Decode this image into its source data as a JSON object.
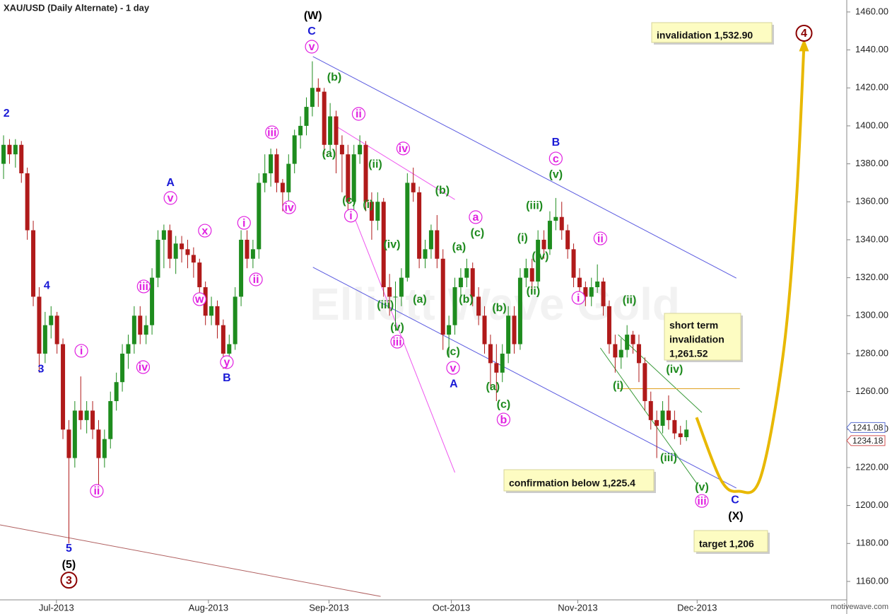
{
  "chart_data": {
    "type": "candlestick",
    "title": "XAU/USD (Daily Alternate) - 1 day",
    "footer": "motivewave.com",
    "watermark": "Elliott Wave Gold",
    "xlim": [
      -0.6,
      142
    ],
    "ylim": [
      1150.3,
      1466.3
    ],
    "xticks": [
      {
        "value": 8.9,
        "label": "Jul-2013"
      },
      {
        "value": 34.5,
        "label": "Aug-2013"
      },
      {
        "value": 54.8,
        "label": "Sep-2013"
      },
      {
        "value": 75.4,
        "label": "Oct-2013"
      },
      {
        "value": 96.7,
        "label": "Nov-2013"
      },
      {
        "value": 116.8,
        "label": "Dec-2013"
      }
    ],
    "yticks": [
      {
        "value": 1160,
        "label": "1160.00"
      },
      {
        "value": 1180,
        "label": "1180.00"
      },
      {
        "value": 1200,
        "label": "1200.00"
      },
      {
        "value": 1220,
        "label": "1220.00"
      },
      {
        "value": 1240,
        "label": "1240.00"
      },
      {
        "value": 1260,
        "label": "1260.00"
      },
      {
        "value": 1280,
        "label": "1280.00"
      },
      {
        "value": 1300,
        "label": "1300.00"
      },
      {
        "value": 1320,
        "label": "1320.00"
      },
      {
        "value": 1340,
        "label": "1340.00"
      },
      {
        "value": 1360,
        "label": "1360.00"
      },
      {
        "value": 1380,
        "label": "1380.00"
      },
      {
        "value": 1400,
        "label": "1400.00"
      },
      {
        "value": 1420,
        "label": "1420.00"
      },
      {
        "value": 1440,
        "label": "1440.00"
      },
      {
        "value": 1460,
        "label": "1460.00"
      }
    ],
    "up_color": "#1e8c1e",
    "down_color": "#b01a1a",
    "ohlc": [
      [
        1380,
        1395,
        1372,
        1390
      ],
      [
        1390,
        1393,
        1380,
        1385
      ],
      [
        1385,
        1393,
        1378,
        1390
      ],
      [
        1390,
        1392,
        1370,
        1375
      ],
      [
        1375,
        1378,
        1340,
        1345
      ],
      [
        1345,
        1350,
        1305,
        1310
      ],
      [
        1310,
        1315,
        1270,
        1280
      ],
      [
        1280,
        1302,
        1275,
        1295
      ],
      [
        1295,
        1305,
        1288,
        1300
      ],
      [
        1300,
        1302,
        1280,
        1285
      ],
      [
        1285,
        1288,
        1235,
        1240
      ],
      [
        1240,
        1245,
        1180,
        1225
      ],
      [
        1225,
        1255,
        1220,
        1250
      ],
      [
        1250,
        1268,
        1240,
        1245
      ],
      [
        1245,
        1255,
        1238,
        1250
      ],
      [
        1250,
        1255,
        1235,
        1240
      ],
      [
        1240,
        1245,
        1210,
        1225
      ],
      [
        1225,
        1240,
        1220,
        1235
      ],
      [
        1235,
        1260,
        1230,
        1255
      ],
      [
        1255,
        1270,
        1250,
        1265
      ],
      [
        1265,
        1285,
        1260,
        1280
      ],
      [
        1280,
        1290,
        1272,
        1285
      ],
      [
        1285,
        1305,
        1280,
        1300
      ],
      [
        1300,
        1305,
        1285,
        1290
      ],
      [
        1290,
        1300,
        1285,
        1295
      ],
      [
        1295,
        1325,
        1290,
        1320
      ],
      [
        1320,
        1345,
        1315,
        1340
      ],
      [
        1340,
        1348,
        1325,
        1345
      ],
      [
        1345,
        1348,
        1325,
        1330
      ],
      [
        1330,
        1342,
        1322,
        1338
      ],
      [
        1338,
        1342,
        1328,
        1335
      ],
      [
        1335,
        1340,
        1325,
        1332
      ],
      [
        1332,
        1336,
        1320,
        1328
      ],
      [
        1328,
        1330,
        1310,
        1315
      ],
      [
        1315,
        1318,
        1295,
        1300
      ],
      [
        1300,
        1310,
        1295,
        1305
      ],
      [
        1305,
        1308,
        1288,
        1295
      ],
      [
        1295,
        1298,
        1272,
        1280
      ],
      [
        1280,
        1290,
        1275,
        1285
      ],
      [
        1285,
        1315,
        1282,
        1310
      ],
      [
        1310,
        1345,
        1305,
        1340
      ],
      [
        1340,
        1345,
        1325,
        1330
      ],
      [
        1330,
        1340,
        1325,
        1335
      ],
      [
        1335,
        1375,
        1330,
        1370
      ],
      [
        1370,
        1385,
        1365,
        1375
      ],
      [
        1375,
        1388,
        1368,
        1385
      ],
      [
        1385,
        1388,
        1365,
        1370
      ],
      [
        1370,
        1372,
        1355,
        1365
      ],
      [
        1365,
        1385,
        1360,
        1380
      ],
      [
        1380,
        1398,
        1375,
        1395
      ],
      [
        1395,
        1405,
        1388,
        1400
      ],
      [
        1400,
        1415,
        1395,
        1410
      ],
      [
        1410,
        1434,
        1405,
        1420
      ],
      [
        1420,
        1425,
        1410,
        1418
      ],
      [
        1418,
        1420,
        1385,
        1390
      ],
      [
        1390,
        1412,
        1385,
        1405
      ],
      [
        1405,
        1408,
        1375,
        1390
      ],
      [
        1390,
        1395,
        1365,
        1385
      ],
      [
        1385,
        1390,
        1355,
        1360
      ],
      [
        1360,
        1390,
        1355,
        1385
      ],
      [
        1385,
        1395,
        1380,
        1390
      ],
      [
        1390,
        1392,
        1355,
        1360
      ],
      [
        1360,
        1365,
        1340,
        1350
      ],
      [
        1350,
        1365,
        1345,
        1360
      ],
      [
        1360,
        1362,
        1310,
        1315
      ],
      [
        1315,
        1322,
        1300,
        1310
      ],
      [
        1310,
        1318,
        1292,
        1310
      ],
      [
        1310,
        1325,
        1305,
        1320
      ],
      [
        1320,
        1375,
        1318,
        1370
      ],
      [
        1370,
        1378,
        1360,
        1365
      ],
      [
        1365,
        1368,
        1325,
        1330
      ],
      [
        1330,
        1340,
        1325,
        1335
      ],
      [
        1335,
        1348,
        1330,
        1345
      ],
      [
        1345,
        1353,
        1325,
        1330
      ],
      [
        1330,
        1335,
        1282,
        1290
      ],
      [
        1290,
        1300,
        1278,
        1295
      ],
      [
        1295,
        1320,
        1290,
        1315
      ],
      [
        1315,
        1325,
        1310,
        1320
      ],
      [
        1320,
        1330,
        1315,
        1325
      ],
      [
        1325,
        1328,
        1305,
        1310
      ],
      [
        1310,
        1315,
        1295,
        1300
      ],
      [
        1300,
        1305,
        1280,
        1285
      ],
      [
        1285,
        1290,
        1262,
        1275
      ],
      [
        1275,
        1285,
        1255,
        1270
      ],
      [
        1270,
        1285,
        1265,
        1280
      ],
      [
        1280,
        1305,
        1275,
        1300
      ],
      [
        1300,
        1305,
        1280,
        1285
      ],
      [
        1285,
        1325,
        1282,
        1320
      ],
      [
        1320,
        1330,
        1315,
        1325
      ],
      [
        1325,
        1330,
        1312,
        1318
      ],
      [
        1318,
        1345,
        1315,
        1340
      ],
      [
        1340,
        1345,
        1330,
        1335
      ],
      [
        1335,
        1355,
        1332,
        1350
      ],
      [
        1350,
        1362,
        1345,
        1352
      ],
      [
        1352,
        1360,
        1340,
        1345
      ],
      [
        1345,
        1348,
        1330,
        1335
      ],
      [
        1335,
        1338,
        1315,
        1320
      ],
      [
        1320,
        1325,
        1308,
        1315
      ],
      [
        1315,
        1318,
        1305,
        1310
      ],
      [
        1310,
        1320,
        1305,
        1315
      ],
      [
        1315,
        1327,
        1312,
        1318
      ],
      [
        1318,
        1320,
        1300,
        1305
      ],
      [
        1305,
        1308,
        1280,
        1285
      ],
      [
        1285,
        1290,
        1270,
        1278
      ],
      [
        1278,
        1288,
        1272,
        1282
      ],
      [
        1282,
        1295,
        1278,
        1290
      ],
      [
        1290,
        1292,
        1280,
        1285
      ],
      [
        1285,
        1290,
        1265,
        1275
      ],
      [
        1275,
        1278,
        1250,
        1255
      ],
      [
        1255,
        1260,
        1240,
        1245
      ],
      [
        1245,
        1250,
        1225,
        1242
      ],
      [
        1242,
        1255,
        1238,
        1250
      ],
      [
        1250,
        1258,
        1240,
        1245
      ],
      [
        1245,
        1250,
        1235,
        1238
      ],
      [
        1238,
        1242,
        1232,
        1236
      ],
      [
        1236,
        1245,
        1234,
        1240
      ]
    ],
    "price_markers": [
      {
        "value": 1241.08,
        "color": "#5a6fd0"
      },
      {
        "value": 1234.18,
        "color": "#d05050"
      }
    ],
    "trend_lines": [
      {
        "x1": 52.1,
        "y1": 1436.5,
        "x2": 123.4,
        "y2": 1319.8,
        "color": "#5a5ae0"
      },
      {
        "x1": 52.1,
        "y1": 1325.5,
        "x2": 123.4,
        "y2": 1209.2,
        "color": "#5a5ae0"
      },
      {
        "x1": 56.3,
        "y1": 1399.2,
        "x2": 76,
        "y2": 1361.2,
        "color": "#ee55ee"
      },
      {
        "x1": 58.6,
        "y1": 1355.6,
        "x2": 76,
        "y2": 1217.4,
        "color": "#ee55ee"
      },
      {
        "x1": 103.5,
        "y1": 1290,
        "x2": 117.6,
        "y2": 1249,
        "color": "#3a9a3a"
      },
      {
        "x1": 100.5,
        "y1": 1283,
        "x2": 116.8,
        "y2": 1211.4,
        "color": "#3a9a3a"
      },
      {
        "x1": 103.5,
        "y1": 1261.52,
        "x2": 124,
        "y2": 1261.52,
        "color": "#e0a020"
      },
      {
        "x1": -0.6,
        "y1": 1189.8,
        "x2": 63.5,
        "y2": 1152.1,
        "color": "#b06060"
      }
    ],
    "projection": {
      "color": "#e8b800",
      "x": [
        116.7,
        120.8,
        123.8,
        127.5,
        131.3,
        133.5,
        134.8
      ],
      "y": [
        1246.4,
        1213.5,
        1207.5,
        1215,
        1280,
        1360,
        1443
      ]
    },
    "boxes": [
      {
        "lines": [
          "invalidation 1,532.90"
        ]
      },
      {
        "lines": [
          "short term",
          "invalidation",
          "1,261.52"
        ]
      },
      {
        "lines": [
          "confirmation below 1,225.4"
        ]
      },
      {
        "lines": [
          "target 1,206"
        ]
      }
    ],
    "annotations": [
      {
        "text": "2",
        "x": 0.5,
        "y": 1406.7,
        "color": "#1a1ad6"
      },
      {
        "text": "4",
        "x": 7.3,
        "y": 1316,
        "color": "#1a1ad6"
      },
      {
        "text": "3",
        "x": 6.3,
        "y": 1272,
        "color": "#1a1ad6"
      },
      {
        "text": "5",
        "x": 11,
        "y": 1177.5,
        "color": "#1a1ad6"
      },
      {
        "text": "(5)",
        "x": 11,
        "y": 1169,
        "color": "#000000"
      },
      {
        "text": "3",
        "x": 11,
        "y": 1160.7,
        "color": "#8b0000",
        "circled": true
      },
      {
        "text": "i",
        "x": 13.1,
        "y": 1281.5,
        "color": "#e020e0",
        "circled": true
      },
      {
        "text": "ii",
        "x": 15.7,
        "y": 1207.7,
        "color": "#e020e0",
        "circled": true
      },
      {
        "text": "iii",
        "x": 23.6,
        "y": 1315.4,
        "color": "#e020e0",
        "circled": true
      },
      {
        "text": "iv",
        "x": 23.5,
        "y": 1272.9,
        "color": "#e020e0",
        "circled": true
      },
      {
        "text": "A",
        "x": 28.1,
        "y": 1370.2,
        "color": "#1a1ad6"
      },
      {
        "text": "v",
        "x": 28.1,
        "y": 1362,
        "color": "#e020e0",
        "circled": true
      },
      {
        "text": "x",
        "x": 33.9,
        "y": 1344.8,
        "color": "#e020e0",
        "circled": true
      },
      {
        "text": "w",
        "x": 33,
        "y": 1308.7,
        "color": "#e020e0",
        "circled": true
      },
      {
        "text": "y",
        "x": 37.6,
        "y": 1275.5,
        "color": "#e020e0",
        "circled": true
      },
      {
        "text": "B",
        "x": 37.6,
        "y": 1267.3,
        "color": "#1a1ad6"
      },
      {
        "text": "i",
        "x": 40.5,
        "y": 1348.9,
        "color": "#e020e0",
        "circled": true
      },
      {
        "text": "ii",
        "x": 42.5,
        "y": 1319.1,
        "color": "#e020e0",
        "circled": true
      },
      {
        "text": "iii",
        "x": 45.2,
        "y": 1396.6,
        "color": "#e020e0",
        "circled": true
      },
      {
        "text": "iv",
        "x": 48.1,
        "y": 1357.1,
        "color": "#e020e0",
        "circled": true
      },
      {
        "text": "(W)",
        "x": 52.1,
        "y": 1458.1,
        "color": "#000000"
      },
      {
        "text": "C",
        "x": 51.9,
        "y": 1450,
        "color": "#1a1ad6"
      },
      {
        "text": "v",
        "x": 51.9,
        "y": 1441.7,
        "color": "#e020e0",
        "circled": true
      },
      {
        "text": "(b)",
        "x": 55.7,
        "y": 1425.7,
        "color": "#1d8a1d"
      },
      {
        "text": "(a)",
        "x": 54.8,
        "y": 1385.5,
        "color": "#1d8a1d"
      },
      {
        "text": "ii",
        "x": 59.8,
        "y": 1406.3,
        "color": "#e020e0",
        "circled": true
      },
      {
        "text": "(c)",
        "x": 58.2,
        "y": 1360.9,
        "color": "#1d8a1d"
      },
      {
        "text": "i",
        "x": 58.5,
        "y": 1352.7,
        "color": "#e020e0",
        "circled": true
      },
      {
        "text": "(ii)",
        "x": 62.6,
        "y": 1379.9,
        "color": "#1d8a1d"
      },
      {
        "text": "(i)",
        "x": 61.4,
        "y": 1358.7,
        "color": "#1d8a1d"
      },
      {
        "text": "iv",
        "x": 67.3,
        "y": 1388.1,
        "color": "#e020e0",
        "circled": true
      },
      {
        "text": "(iv)",
        "x": 65.4,
        "y": 1337.7,
        "color": "#1d8a1d"
      },
      {
        "text": "(iii)",
        "x": 64.3,
        "y": 1305.7,
        "color": "#1d8a1d"
      },
      {
        "text": "(v)",
        "x": 66.3,
        "y": 1294.1,
        "color": "#1d8a1d"
      },
      {
        "text": "iii",
        "x": 66.3,
        "y": 1286.3,
        "color": "#e020e0",
        "circled": true
      },
      {
        "text": "(b)",
        "x": 73.9,
        "y": 1366.1,
        "color": "#1d8a1d"
      },
      {
        "text": "a",
        "x": 79.5,
        "y": 1351.9,
        "color": "#e020e0",
        "circled": true
      },
      {
        "text": "(c)",
        "x": 79.8,
        "y": 1343.7,
        "color": "#1d8a1d"
      },
      {
        "text": "(a)",
        "x": 76.7,
        "y": 1336.3,
        "color": "#1d8a1d"
      },
      {
        "text": "(a)",
        "x": 70.1,
        "y": 1308.7,
        "color": "#1d8a1d"
      },
      {
        "text": "(b)",
        "x": 77.9,
        "y": 1308.7,
        "color": "#1d8a1d"
      },
      {
        "text": "(c)",
        "x": 75.7,
        "y": 1281.1,
        "color": "#1d8a1d"
      },
      {
        "text": "v",
        "x": 75.7,
        "y": 1272.5,
        "color": "#e020e0",
        "circled": true
      },
      {
        "text": "A",
        "x": 75.8,
        "y": 1264.3,
        "color": "#1a1ad6"
      },
      {
        "text": "(b)",
        "x": 83.5,
        "y": 1304.2,
        "color": "#1d8a1d"
      },
      {
        "text": "(a)",
        "x": 82.4,
        "y": 1262.8,
        "color": "#1d8a1d"
      },
      {
        "text": "(c)",
        "x": 84.2,
        "y": 1253.5,
        "color": "#1d8a1d"
      },
      {
        "text": "b",
        "x": 84.2,
        "y": 1245.3,
        "color": "#e020e0",
        "circled": true
      },
      {
        "text": "B",
        "x": 93,
        "y": 1391.4,
        "color": "#1a1ad6"
      },
      {
        "text": "c",
        "x": 93,
        "y": 1382.8,
        "color": "#e020e0",
        "circled": true
      },
      {
        "text": "(v)",
        "x": 93,
        "y": 1374.6,
        "color": "#1d8a1d"
      },
      {
        "text": "(iii)",
        "x": 89.4,
        "y": 1358.2,
        "color": "#1d8a1d"
      },
      {
        "text": "(i)",
        "x": 87.4,
        "y": 1341.1,
        "color": "#1d8a1d"
      },
      {
        "text": "(iv)",
        "x": 90.4,
        "y": 1331.4,
        "color": "#1d8a1d"
      },
      {
        "text": "(ii)",
        "x": 89.2,
        "y": 1313.1,
        "color": "#1d8a1d"
      },
      {
        "text": "ii",
        "x": 100.5,
        "y": 1340.7,
        "color": "#e020e0",
        "circled": true
      },
      {
        "text": "i",
        "x": 96.8,
        "y": 1309.4,
        "color": "#e020e0",
        "circled": true
      },
      {
        "text": "(ii)",
        "x": 105.4,
        "y": 1308.3,
        "color": "#1d8a1d"
      },
      {
        "text": "(i)",
        "x": 103.5,
        "y": 1263.2,
        "color": "#1d8a1d"
      },
      {
        "text": "(iv)",
        "x": 113,
        "y": 1271.8,
        "color": "#1d8a1d"
      },
      {
        "text": "(iii)",
        "x": 112,
        "y": 1225.2,
        "color": "#1d8a1d"
      },
      {
        "text": "(v)",
        "x": 117.6,
        "y": 1209.9,
        "color": "#1d8a1d"
      },
      {
        "text": "iii",
        "x": 117.6,
        "y": 1202.4,
        "color": "#e020e0",
        "circled": true
      },
      {
        "text": "C",
        "x": 123.2,
        "y": 1203.2,
        "color": "#1a1ad6"
      },
      {
        "text": "(X)",
        "x": 123.3,
        "y": 1194.6,
        "color": "#000000"
      },
      {
        "text": "4",
        "x": 134.8,
        "y": 1448.8,
        "color": "#8b0000",
        "circled": true
      }
    ]
  }
}
